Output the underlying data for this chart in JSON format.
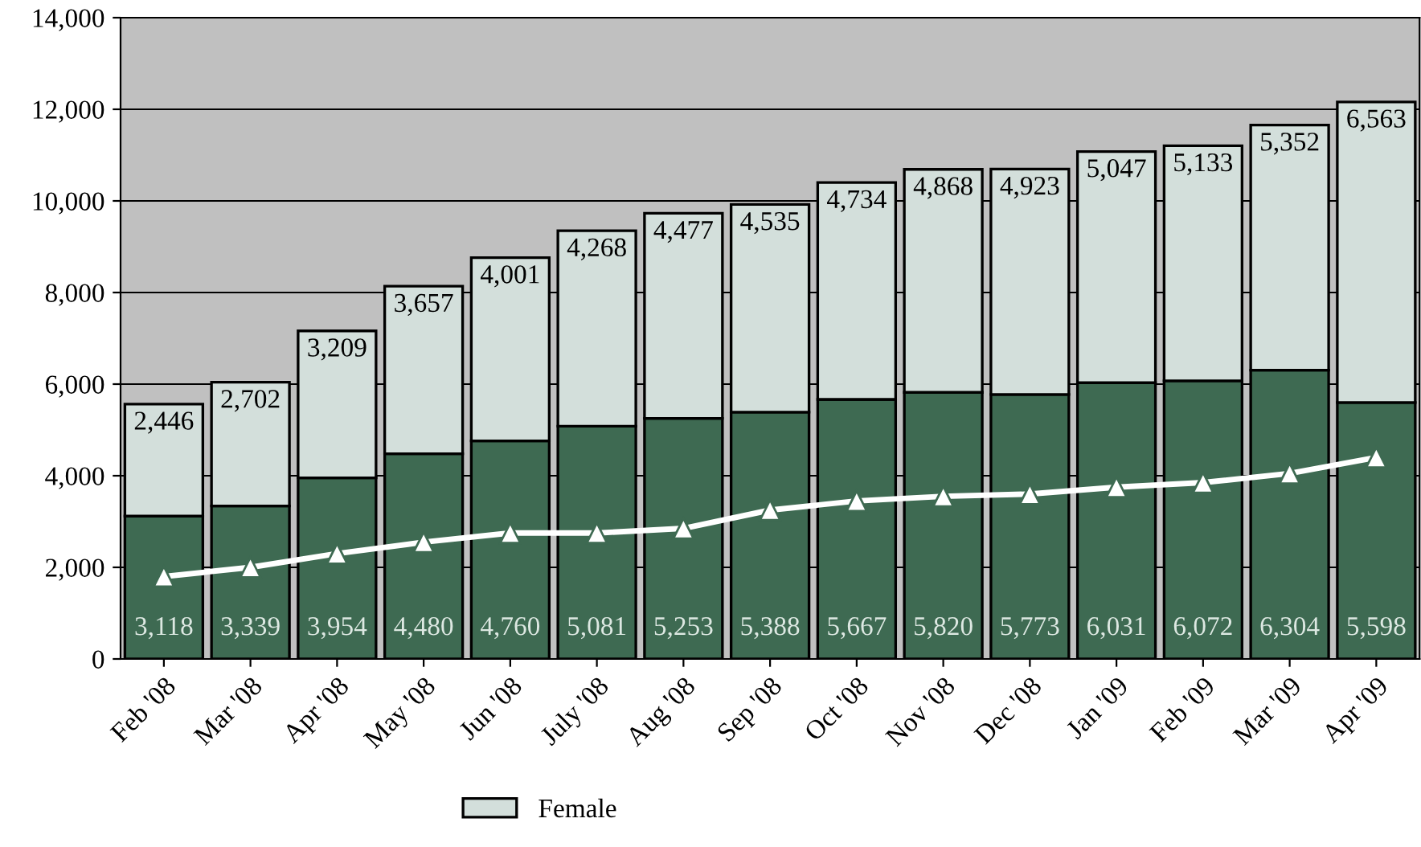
{
  "chart_data": {
    "type": "bar",
    "stacked": true,
    "grid": "y",
    "legend": "bottom",
    "categories": [
      "Feb '08",
      "Mar '08",
      "Apr '08",
      "May '08",
      "Jun '08",
      "July '08",
      "Aug '08",
      "Sep '08",
      "Oct '08",
      "Nov '08",
      "Dec '08",
      "Jan '09",
      "Feb '09",
      "Mar '09",
      "Apr '09"
    ],
    "ylim": [
      0,
      14000
    ],
    "yticks": [
      {
        "value": 0,
        "label": "0"
      },
      {
        "value": 2000,
        "label": "2,000"
      },
      {
        "value": 4000,
        "label": "4,000"
      },
      {
        "value": 6000,
        "label": "6,000"
      },
      {
        "value": 8000,
        "label": "8,000"
      },
      {
        "value": 10000,
        "label": "10,000"
      },
      {
        "value": 12000,
        "label": "12,000"
      },
      {
        "value": 14000,
        "label": "14,000"
      }
    ],
    "series": [
      {
        "color": "#3e6a52",
        "values": [
          3118,
          3339,
          3954,
          4480,
          4760,
          5081,
          5253,
          5388,
          5667,
          5820,
          5773,
          6031,
          6072,
          6304,
          5598
        ],
        "value_labels": [
          "3,118",
          "3,339",
          "3,954",
          "4,480",
          "4,760",
          "5,081",
          "5,253",
          "5,388",
          "5,667",
          "5,820",
          "5,773",
          "6,031",
          "6,072",
          "6,304",
          "5,598"
        ]
      },
      {
        "name": "Female",
        "color": "#d3dfdb",
        "values": [
          2446,
          2702,
          3209,
          3657,
          4001,
          4268,
          4477,
          4535,
          4734,
          4868,
          4923,
          5047,
          5133,
          5352,
          6563
        ],
        "value_labels": [
          "2,446",
          "2,702",
          "3,209",
          "3,657",
          "4,001",
          "4,268",
          "4,477",
          "4,535",
          "4,734",
          "4,868",
          "4,923",
          "5,047",
          "5,133",
          "5,352",
          "6,563"
        ]
      },
      {
        "type": "line",
        "color": "#ffffff",
        "marker": "triangle",
        "values": [
          1800,
          2000,
          2300,
          2550,
          2750,
          2750,
          2850,
          3250,
          3450,
          3550,
          3600,
          3750,
          3850,
          4050,
          4400
        ]
      }
    ]
  }
}
